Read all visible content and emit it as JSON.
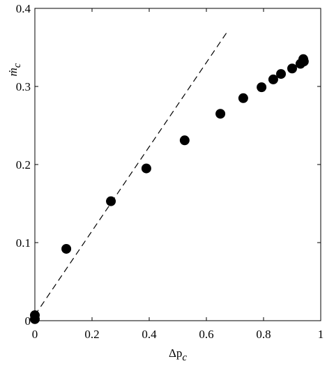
{
  "chart_data": {
    "type": "scatter",
    "xlabel": [
      "Δp",
      "c"
    ],
    "ylabel": [
      "ṁ",
      "c"
    ],
    "x": [
      0,
      0,
      0.11,
      0.266,
      0.39,
      0.524,
      0.649,
      0.729,
      0.793,
      0.834,
      0.861,
      0.9,
      0.929,
      0.941,
      0.939
    ],
    "y": [
      0.007,
      0.002,
      0.092,
      0.153,
      0.195,
      0.231,
      0.265,
      0.285,
      0.299,
      0.309,
      0.316,
      0.323,
      0.329,
      0.332,
      0.335
    ],
    "color": "#000000",
    "line": {
      "x": [
        0,
        0.673
      ],
      "y": [
        0.007,
        0.37
      ],
      "color": "#000000"
    },
    "xlim": [
      0,
      1
    ],
    "ylim": [
      0,
      0.4
    ],
    "xticks": [
      0,
      0.2,
      0.4,
      0.6,
      0.8,
      1
    ],
    "yticks": [
      0,
      0.1,
      0.2,
      0.3,
      0.4
    ],
    "grid": false
  }
}
